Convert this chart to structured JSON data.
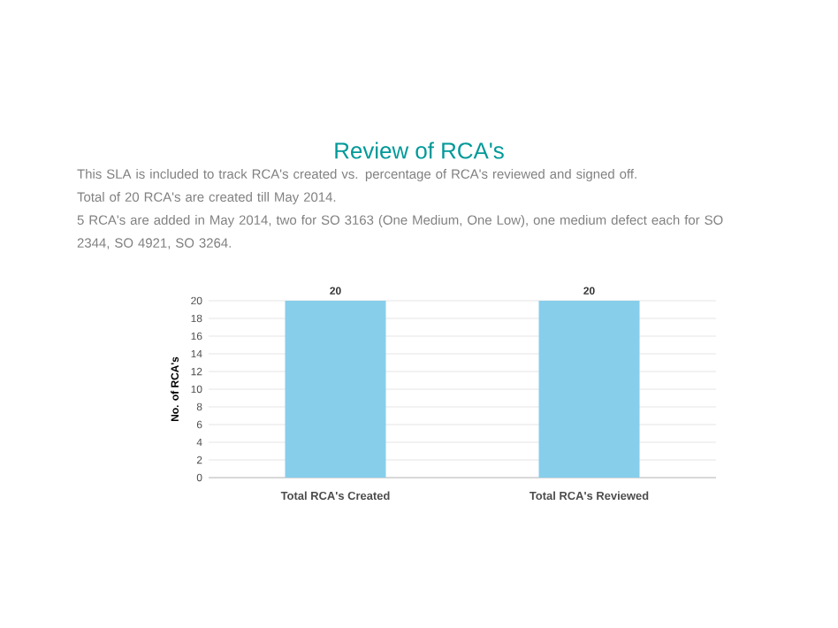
{
  "chart_data": {
    "type": "bar",
    "title": "Review of RCA's",
    "annotations": [
      "This SLA is included to track RCA's created vs. percentage of RCA's reviewed and signed off.",
      "Total of 20 RCA's are created till May 2014.",
      "5 RCA's are added in May 2014, two for SO 3163 (One Medium, One Low), one medium defect each for SO 2344, SO 4921, SO 3264."
    ],
    "ylabel": "No. of RCA's",
    "categories": [
      "Total RCA's Created",
      "Total RCA's Reviewed"
    ],
    "values": [
      20,
      20
    ],
    "color": "#87ceeb",
    "ylim": [
      0,
      20
    ],
    "yticks": [
      0,
      2,
      4,
      6,
      8,
      10,
      12,
      14,
      16,
      18,
      20
    ],
    "grid": "y",
    "data_labels": true
  }
}
